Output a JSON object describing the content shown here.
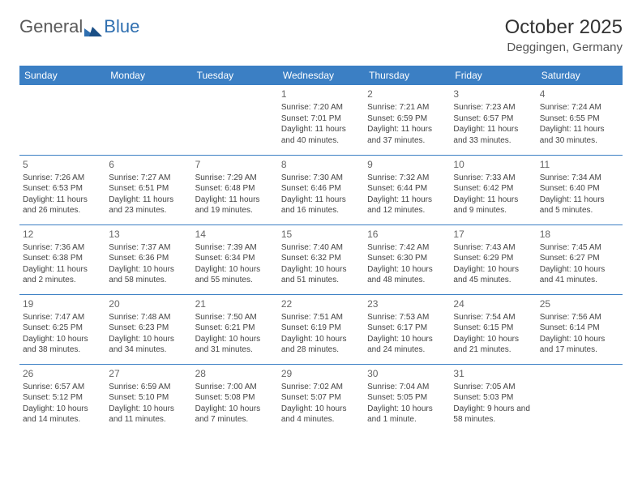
{
  "logo": {
    "text1": "General",
    "text2": "Blue",
    "brand_color": "#2f6fb0",
    "gray_color": "#6a6a6a"
  },
  "title": "October 2025",
  "location": "Deggingen, Germany",
  "header_bg": "#3b7fc4",
  "day_headers": [
    "Sunday",
    "Monday",
    "Tuesday",
    "Wednesday",
    "Thursday",
    "Friday",
    "Saturday"
  ],
  "weeks": [
    [
      null,
      null,
      null,
      {
        "n": "1",
        "sr": "7:20 AM",
        "ss": "7:01 PM",
        "dl": "11 hours and 40 minutes."
      },
      {
        "n": "2",
        "sr": "7:21 AM",
        "ss": "6:59 PM",
        "dl": "11 hours and 37 minutes."
      },
      {
        "n": "3",
        "sr": "7:23 AM",
        "ss": "6:57 PM",
        "dl": "11 hours and 33 minutes."
      },
      {
        "n": "4",
        "sr": "7:24 AM",
        "ss": "6:55 PM",
        "dl": "11 hours and 30 minutes."
      }
    ],
    [
      {
        "n": "5",
        "sr": "7:26 AM",
        "ss": "6:53 PM",
        "dl": "11 hours and 26 minutes."
      },
      {
        "n": "6",
        "sr": "7:27 AM",
        "ss": "6:51 PM",
        "dl": "11 hours and 23 minutes."
      },
      {
        "n": "7",
        "sr": "7:29 AM",
        "ss": "6:48 PM",
        "dl": "11 hours and 19 minutes."
      },
      {
        "n": "8",
        "sr": "7:30 AM",
        "ss": "6:46 PM",
        "dl": "11 hours and 16 minutes."
      },
      {
        "n": "9",
        "sr": "7:32 AM",
        "ss": "6:44 PM",
        "dl": "11 hours and 12 minutes."
      },
      {
        "n": "10",
        "sr": "7:33 AM",
        "ss": "6:42 PM",
        "dl": "11 hours and 9 minutes."
      },
      {
        "n": "11",
        "sr": "7:34 AM",
        "ss": "6:40 PM",
        "dl": "11 hours and 5 minutes."
      }
    ],
    [
      {
        "n": "12",
        "sr": "7:36 AM",
        "ss": "6:38 PM",
        "dl": "11 hours and 2 minutes."
      },
      {
        "n": "13",
        "sr": "7:37 AM",
        "ss": "6:36 PM",
        "dl": "10 hours and 58 minutes."
      },
      {
        "n": "14",
        "sr": "7:39 AM",
        "ss": "6:34 PM",
        "dl": "10 hours and 55 minutes."
      },
      {
        "n": "15",
        "sr": "7:40 AM",
        "ss": "6:32 PM",
        "dl": "10 hours and 51 minutes."
      },
      {
        "n": "16",
        "sr": "7:42 AM",
        "ss": "6:30 PM",
        "dl": "10 hours and 48 minutes."
      },
      {
        "n": "17",
        "sr": "7:43 AM",
        "ss": "6:29 PM",
        "dl": "10 hours and 45 minutes."
      },
      {
        "n": "18",
        "sr": "7:45 AM",
        "ss": "6:27 PM",
        "dl": "10 hours and 41 minutes."
      }
    ],
    [
      {
        "n": "19",
        "sr": "7:47 AM",
        "ss": "6:25 PM",
        "dl": "10 hours and 38 minutes."
      },
      {
        "n": "20",
        "sr": "7:48 AM",
        "ss": "6:23 PM",
        "dl": "10 hours and 34 minutes."
      },
      {
        "n": "21",
        "sr": "7:50 AM",
        "ss": "6:21 PM",
        "dl": "10 hours and 31 minutes."
      },
      {
        "n": "22",
        "sr": "7:51 AM",
        "ss": "6:19 PM",
        "dl": "10 hours and 28 minutes."
      },
      {
        "n": "23",
        "sr": "7:53 AM",
        "ss": "6:17 PM",
        "dl": "10 hours and 24 minutes."
      },
      {
        "n": "24",
        "sr": "7:54 AM",
        "ss": "6:15 PM",
        "dl": "10 hours and 21 minutes."
      },
      {
        "n": "25",
        "sr": "7:56 AM",
        "ss": "6:14 PM",
        "dl": "10 hours and 17 minutes."
      }
    ],
    [
      {
        "n": "26",
        "sr": "6:57 AM",
        "ss": "5:12 PM",
        "dl": "10 hours and 14 minutes."
      },
      {
        "n": "27",
        "sr": "6:59 AM",
        "ss": "5:10 PM",
        "dl": "10 hours and 11 minutes."
      },
      {
        "n": "28",
        "sr": "7:00 AM",
        "ss": "5:08 PM",
        "dl": "10 hours and 7 minutes."
      },
      {
        "n": "29",
        "sr": "7:02 AM",
        "ss": "5:07 PM",
        "dl": "10 hours and 4 minutes."
      },
      {
        "n": "30",
        "sr": "7:04 AM",
        "ss": "5:05 PM",
        "dl": "10 hours and 1 minute."
      },
      {
        "n": "31",
        "sr": "7:05 AM",
        "ss": "5:03 PM",
        "dl": "9 hours and 58 minutes."
      },
      null
    ]
  ],
  "labels": {
    "sunrise": "Sunrise: ",
    "sunset": "Sunset: ",
    "daylight": "Daylight: "
  }
}
